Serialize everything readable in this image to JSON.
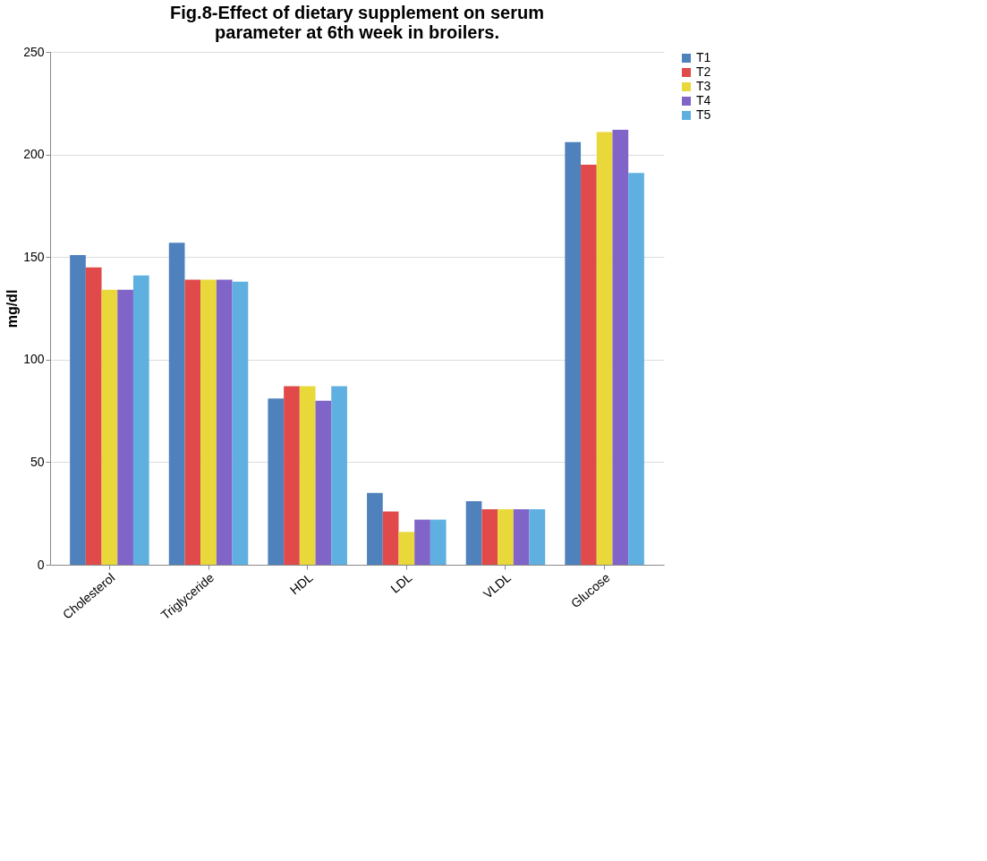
{
  "chart_data": {
    "type": "bar",
    "title": "Fig.8-Effect of dietary supplement on serum parameter at 6th week in broilers.",
    "ylabel": "mg/dl",
    "categories": [
      "Cholesterol",
      "Triglyceride",
      "HDL",
      "LDL",
      "VLDL",
      "Glucose"
    ],
    "series": [
      {
        "name": "T1",
        "color": "#4f81bd",
        "values": [
          151,
          157,
          81,
          35,
          31,
          206
        ]
      },
      {
        "name": "T2",
        "color": "#e04a4a",
        "values": [
          145,
          139,
          87,
          26,
          27,
          195
        ]
      },
      {
        "name": "T3",
        "color": "#e8d83a",
        "values": [
          134,
          139,
          87,
          16,
          27,
          211
        ]
      },
      {
        "name": "T4",
        "color": "#8064c8",
        "values": [
          134,
          139,
          80,
          22,
          27,
          212
        ]
      },
      {
        "name": "T5",
        "color": "#5fb0e0",
        "values": [
          141,
          138,
          87,
          22,
          27,
          191
        ]
      }
    ],
    "ylim": [
      0,
      250
    ],
    "yticks": [
      0,
      50,
      100,
      150,
      200,
      250
    ],
    "grid": "y",
    "legend": "right"
  }
}
